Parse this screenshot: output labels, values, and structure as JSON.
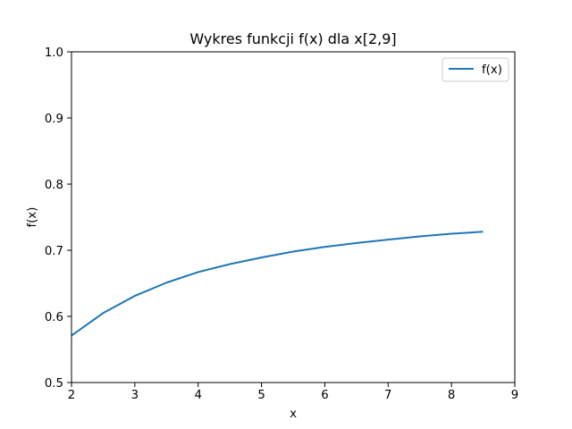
{
  "chart_data": {
    "type": "line",
    "title": "Wykres funkcji f(x)  dla x[2,9]",
    "xlabel": "x",
    "ylabel": "f(x)",
    "xlim": [
      2,
      9
    ],
    "ylim": [
      0.5,
      1.0
    ],
    "xticks": [
      "2",
      "3",
      "4",
      "5",
      "6",
      "7",
      "8",
      "9"
    ],
    "yticks": [
      "0.5",
      "0.6",
      "0.7",
      "0.8",
      "0.9",
      "1.0"
    ],
    "grid": false,
    "legend": {
      "placement": "top-right",
      "entries": [
        "f(x)"
      ]
    },
    "series": [
      {
        "name": "f(x)",
        "color": "#1f77b4",
        "x": [
          2.0,
          2.5,
          3.0,
          3.5,
          4.0,
          4.5,
          5.0,
          5.5,
          6.0,
          6.5,
          7.0,
          7.5,
          8.0,
          8.5
        ],
        "y": [
          0.571,
          0.605,
          0.631,
          0.651,
          0.667,
          0.679,
          0.689,
          0.698,
          0.705,
          0.711,
          0.716,
          0.721,
          0.725,
          0.728
        ]
      }
    ]
  }
}
